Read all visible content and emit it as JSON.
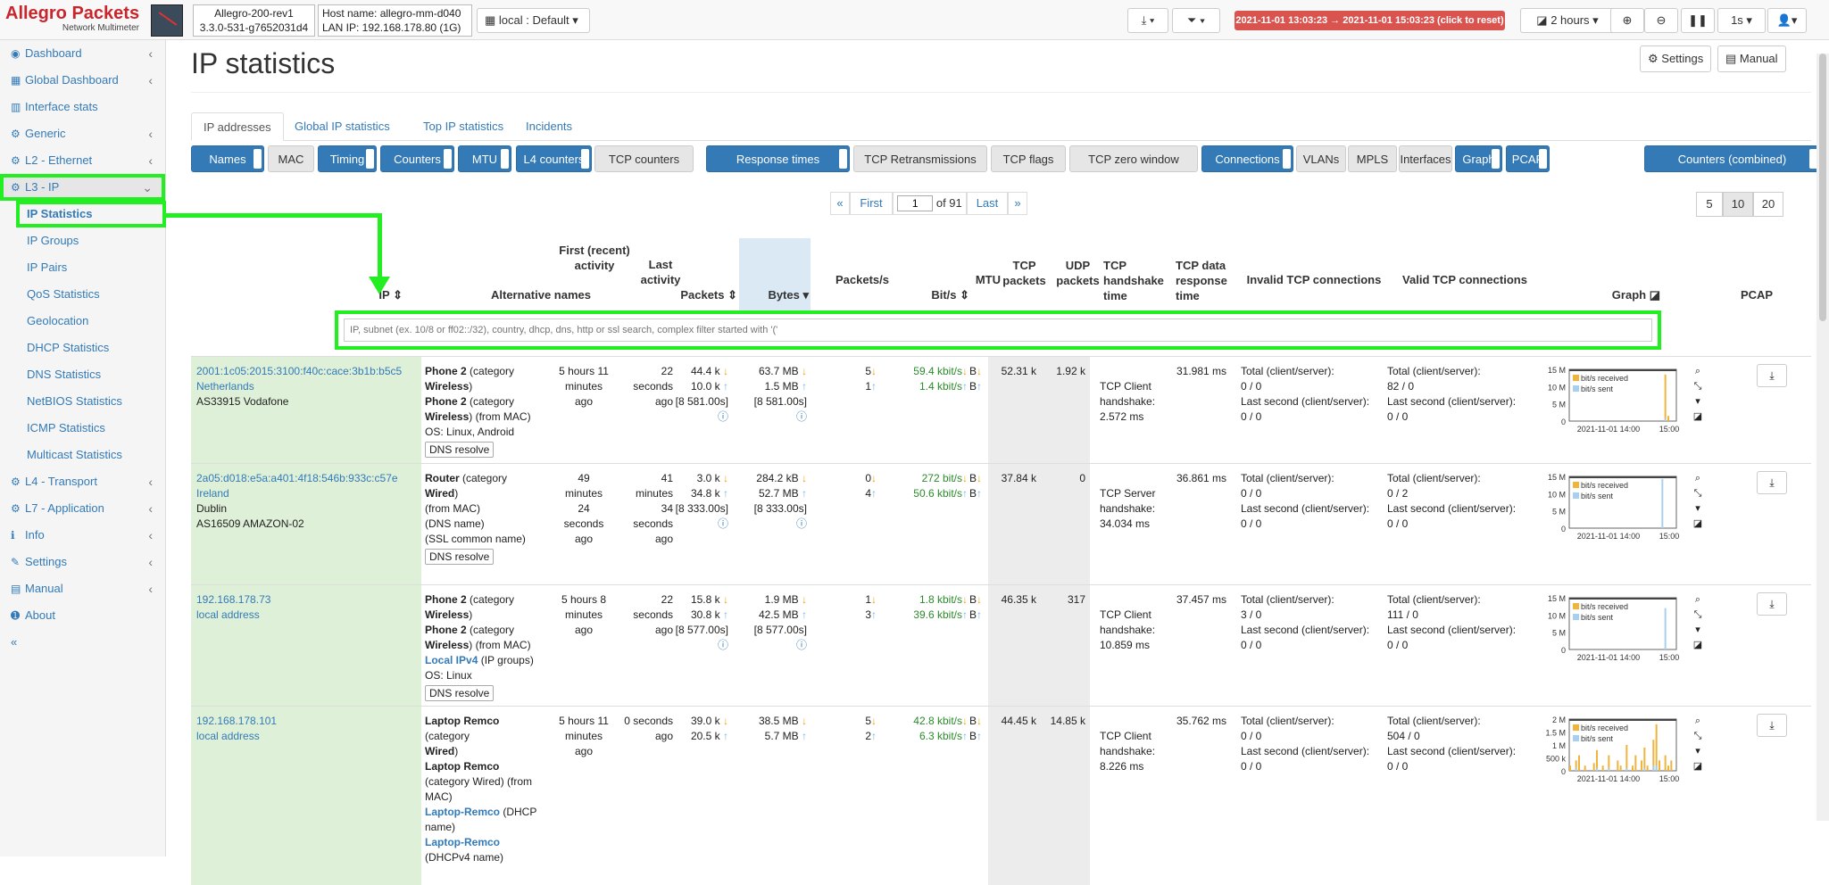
{
  "app": {
    "logo_line1": "Allegro Packets",
    "logo_line2": "Network Multimeter",
    "device_name": "Allegro-200-rev1",
    "version": "3.3.0-531-g7652031d4",
    "hostname": "Host name: allegro-mm-d040",
    "lan_ip": "LAN IP: 192.168.178.80 (1G)",
    "profile": "local : Default",
    "time_range": "2021-11-01 13:03:23 → 2021-11-01 15:03:23  (click to reset)",
    "interval": "2 hours",
    "refresh": "1s",
    "colors": {
      "accent": "#337ab7",
      "highlight": "#22ee22",
      "danger": "#d9534f"
    }
  },
  "sidebar": {
    "items": [
      {
        "label": "Dashboard",
        "icon": "dashboard-icon",
        "chev": "‹"
      },
      {
        "label": "Global Dashboard",
        "icon": "global-dashboard-icon",
        "chev": "‹"
      },
      {
        "label": "Interface stats",
        "icon": "chart-icon",
        "chev": ""
      },
      {
        "label": "Generic",
        "icon": "gear-icon",
        "chev": "‹"
      },
      {
        "label": "L2 - Ethernet",
        "icon": "gear-icon",
        "chev": "‹"
      },
      {
        "label": "L3 - IP",
        "icon": "gear-icon",
        "chev": "⌄"
      }
    ],
    "sub": [
      "IP Statistics",
      "IP Groups",
      "IP Pairs",
      "QoS Statistics",
      "Geolocation",
      "DHCP Statistics",
      "DNS Statistics",
      "NetBIOS Statistics",
      "ICMP Statistics",
      "Multicast Statistics"
    ],
    "bottom": [
      {
        "label": "L4 - Transport",
        "icon": "gear-icon",
        "chev": "‹"
      },
      {
        "label": "L7 - Application",
        "icon": "gear-icon",
        "chev": "‹"
      },
      {
        "label": "Info",
        "icon": "info-icon",
        "chev": "‹"
      },
      {
        "label": "Settings",
        "icon": "wrench-icon",
        "chev": "‹"
      },
      {
        "label": "Manual",
        "icon": "book-icon",
        "chev": "‹"
      },
      {
        "label": "About",
        "icon": "info-circle-icon",
        "chev": ""
      }
    ],
    "collapse": "«"
  },
  "page": {
    "title": "IP statistics",
    "settings_btn": "Settings",
    "manual_btn": "Manual"
  },
  "tabs": [
    "IP addresses",
    "Global IP statistics",
    "Top IP statistics",
    "Incidents"
  ],
  "toggles": [
    {
      "label": "Names",
      "on": true
    },
    {
      "label": "MAC",
      "on": false
    },
    {
      "label": "Timing",
      "on": true
    },
    {
      "label": "Counters",
      "on": true
    },
    {
      "label": "MTU",
      "on": true
    },
    {
      "label": "L4 counters",
      "on": true
    },
    {
      "label": "TCP counters",
      "on": false
    },
    {
      "label": "Response times",
      "on": true
    },
    {
      "label": "TCP Retransmissions",
      "on": false
    },
    {
      "label": "TCP flags",
      "on": false
    },
    {
      "label": "TCP zero window",
      "on": false
    },
    {
      "label": "Connections",
      "on": true
    },
    {
      "label": "VLANs",
      "on": false
    },
    {
      "label": "MPLS",
      "on": false
    },
    {
      "label": "Interfaces",
      "on": false
    },
    {
      "label": "Graph",
      "on": true
    },
    {
      "label": "PCAP",
      "on": true
    },
    {
      "label": "Counters (combined)",
      "on": true
    }
  ],
  "pagination": {
    "prev": "«",
    "first": "First",
    "page": "1",
    "of": "of 91",
    "last": "Last",
    "next": "»",
    "sizes": [
      "5",
      "10",
      "20"
    ]
  },
  "columns": {
    "ip": "IP",
    "alt": "Alternative names",
    "first": "First (recent) activity",
    "last": "Last activity",
    "packets": "Packets",
    "bytes": "Bytes",
    "pps": "Packets/s",
    "bits": "Bit/s",
    "mtu": "MTU",
    "tcp": "TCP packets",
    "udp": "UDP packets",
    "hs": "TCP handshake time",
    "dr": "TCP data response time",
    "inv": "Invalid TCP connections",
    "val": "Valid TCP connections",
    "graph": "Graph",
    "pcap": "PCAP"
  },
  "filter": {
    "placeholder": "IP, subnet (ex. 10/8 or ff02::/32), country, dhcp, dns, http or ssl search, complex filter started with '('"
  },
  "graph_legend": {
    "recv": "bit/s received",
    "sent": "bit/s sent"
  },
  "rows": [
    {
      "ip": "2001:1c05:2015:3100:f40c:cace:3b1b:b5c5",
      "ip2": "Netherlands",
      "ip3": "",
      "ip4": "AS33915 Vodafone",
      "alt": [
        [
          "Phone 2",
          " (category"
        ],
        [
          "Wireless",
          ")"
        ],
        [
          "Phone 2",
          " (category"
        ],
        [
          "Wireless",
          ") (from MAC)"
        ],
        [
          "",
          "OS: Linux, Android"
        ]
      ],
      "dns": "DNS resolve",
      "first": "5 hours 11 minutes ago",
      "last": "22 seconds ago",
      "pk1": "44.4 k",
      "pk2": "10.0 k",
      "pk3": "[8 581.00s]",
      "by1": "63.7 MB",
      "by2": "1.5 MB",
      "by3": "[8 581.00s]",
      "pps1": "5",
      "pps2": "1",
      "bs1": "59.4 kbit/s",
      "bs2": "1.4 kbit/s",
      "mtu1": "B",
      "mtu2": "B",
      "tcp": "52.31 k",
      "udp": "1.92 k",
      "hs": "TCP Client handshake: 2.572 ms",
      "dr": "31.981 ms",
      "inv": [
        "Total (client/server):",
        "0 / 0",
        "Last second (client/server):",
        "0 / 0"
      ],
      "val": [
        "Total (client/server):",
        "82 / 0",
        "Last second (client/server):",
        "0 / 0"
      ],
      "g_y": [
        "15 M",
        "10 M",
        "5 M",
        "0"
      ],
      "g_x": [
        "2021-11-01 14:00",
        "15:00"
      ],
      "g_recv": [
        0,
        0,
        0,
        0,
        0,
        0,
        0,
        0,
        0,
        0,
        0,
        0,
        0,
        0,
        0,
        0,
        0,
        0,
        0,
        0,
        0,
        0,
        0,
        0,
        0,
        0,
        0,
        0,
        0,
        0,
        0,
        0,
        0.9,
        0.1,
        0,
        0
      ],
      "g_sent": [
        0,
        0,
        0,
        0,
        0,
        0,
        0,
        0,
        0,
        0,
        0,
        0,
        0,
        0,
        0,
        0,
        0,
        0,
        0,
        0,
        0,
        0,
        0,
        0,
        0,
        0,
        0,
        0,
        0,
        0,
        0,
        0,
        0.05,
        0,
        0,
        0
      ]
    },
    {
      "ip": "2a05:d018:e5a:a401:4f18:546b:933c:c57e",
      "ip2": "Ireland",
      "ip3": "Dublin",
      "ip4": "AS16509 AMAZON-02",
      "alt": [
        [
          "Router",
          " (category "
        ],
        [
          "Wired",
          ")"
        ],
        [
          "",
          "(from MAC)"
        ],
        [
          "",
          ""
        ],
        [
          "",
          "(DNS name)"
        ],
        [
          "",
          "(SSL common name)"
        ]
      ],
      "dns": "DNS resolve",
      "first": "49 minutes 24 seconds ago",
      "last": "41 minutes 34 seconds ago",
      "pk1": "3.0 k",
      "pk2": "34.8 k",
      "pk3": "[8 333.00s]",
      "by1": "284.2 kB",
      "by2": "52.7 MB",
      "by3": "[8 333.00s]",
      "pps1": "0",
      "pps2": "4",
      "bs1": "272 bit/s",
      "bs2": "50.6 kbit/s",
      "mtu1": "B",
      "mtu2": "B",
      "tcp": "37.84 k",
      "udp": "0",
      "hs": "TCP Server handshake: 34.034 ms",
      "dr": "36.861 ms",
      "inv": [
        "Total (client/server):",
        "0 / 0",
        "Last second (client/server):",
        "0 / 0"
      ],
      "val": [
        "Total (client/server):",
        "0 / 2",
        "Last second (client/server):",
        "0 / 0"
      ],
      "g_y": [
        "15 M",
        "10 M",
        "5 M",
        "0"
      ],
      "g_x": [
        "2021-11-01 14:00",
        "15:00"
      ],
      "g_recv": [
        0,
        0,
        0,
        0,
        0,
        0,
        0,
        0,
        0,
        0,
        0,
        0,
        0,
        0,
        0,
        0,
        0,
        0,
        0,
        0,
        0,
        0,
        0,
        0,
        0,
        0,
        0,
        0,
        0,
        0,
        0,
        0,
        0,
        0,
        0,
        0
      ],
      "g_sent": [
        0,
        0,
        0,
        0,
        0,
        0,
        0,
        0,
        0,
        0,
        0,
        0,
        0,
        0,
        0,
        0,
        0,
        0,
        0,
        0,
        0,
        0,
        0,
        0,
        0,
        0,
        0,
        0,
        0,
        0,
        0,
        0.95,
        0,
        0,
        0,
        0
      ]
    },
    {
      "ip": "192.168.178.73",
      "ip2": "local address",
      "ip3": "",
      "ip4": "",
      "alt": [
        [
          "Phone 2",
          " (category"
        ],
        [
          "Wireless",
          ")"
        ],
        [
          "Phone 2",
          " (category"
        ],
        [
          "Wireless",
          ") (from MAC)"
        ],
        [
          "Local IPv4",
          " (IP groups)"
        ],
        [
          "",
          "OS: Linux"
        ]
      ],
      "dns": "DNS resolve",
      "first": "5 hours 8 minutes ago",
      "last": "22 seconds ago",
      "pk1": "15.8 k",
      "pk2": "30.8 k",
      "pk3": "[8 577.00s]",
      "by1": "1.9 MB",
      "by2": "42.5 MB",
      "by3": "[8 577.00s]",
      "pps1": "1",
      "pps2": "3",
      "bs1": "1.8 kbit/s",
      "bs2": "39.6 kbit/s",
      "mtu1": "B",
      "mtu2": "B",
      "tcp": "46.35 k",
      "udp": "317",
      "hs": "TCP Client handshake: 10.859 ms",
      "dr": "37.457 ms",
      "inv": [
        "Total (client/server):",
        "3 / 0",
        "Last second (client/server):",
        "0 / 0"
      ],
      "val": [
        "Total (client/server):",
        "111 / 0",
        "Last second (client/server):",
        "0 / 0"
      ],
      "g_y": [
        "15 M",
        "10 M",
        "5 M",
        "0"
      ],
      "g_x": [
        "2021-11-01 14:00",
        "15:00"
      ],
      "g_recv": [
        0,
        0,
        0,
        0,
        0,
        0,
        0,
        0,
        0,
        0,
        0,
        0,
        0,
        0,
        0,
        0,
        0,
        0,
        0,
        0,
        0,
        0,
        0,
        0,
        0,
        0,
        0,
        0,
        0,
        0,
        0,
        0,
        0.02,
        0,
        0,
        0
      ],
      "g_sent": [
        0,
        0,
        0,
        0,
        0,
        0,
        0,
        0,
        0,
        0,
        0,
        0,
        0,
        0,
        0,
        0,
        0,
        0,
        0,
        0,
        0,
        0,
        0,
        0,
        0,
        0,
        0,
        0,
        0,
        0,
        0,
        0,
        0.8,
        0,
        0,
        0
      ]
    },
    {
      "ip": "192.168.178.101",
      "ip2": "local address",
      "ip3": "",
      "ip4": "",
      "alt": [
        [
          "Laptop Remco",
          ""
        ],
        [
          "",
          "(category "
        ],
        [
          "Wired",
          ")"
        ],
        [
          "Laptop Remco",
          ""
        ],
        [
          "",
          "(category Wired) (from MAC)"
        ],
        [
          "Laptop-Remco",
          " (DHCP name)"
        ],
        [
          "Laptop-Remco",
          ""
        ],
        [
          "",
          "(DHCPv4 name)"
        ]
      ],
      "dns": "",
      "first": "5 hours 11 minutes ago",
      "last": "0 seconds ago",
      "pk1": "39.0 k",
      "pk2": "20.5 k",
      "pk3": "",
      "by1": "38.5 MB",
      "by2": "5.7 MB",
      "by3": "",
      "pps1": "5",
      "pps2": "2",
      "bs1": "42.8 kbit/s",
      "bs2": "6.3 kbit/s",
      "mtu1": "B",
      "mtu2": "B",
      "tcp": "44.45 k",
      "udp": "14.85 k",
      "hs": "TCP Client handshake: 8.226 ms",
      "dr": "35.762 ms",
      "inv": [
        "Total (client/server):",
        "0 / 0",
        "Last second (client/server):",
        "0 / 0"
      ],
      "val": [
        "Total (client/server):",
        "504 / 0",
        "Last second (client/server):",
        "0 / 0"
      ],
      "g_y": [
        "2 M",
        "1.5 M",
        "1 M",
        "500 k",
        "0"
      ],
      "g_x": [
        "2021-11-01 14:00",
        "15:00"
      ],
      "g_recv": [
        0.1,
        0,
        0.2,
        0.3,
        0,
        0.1,
        0,
        0,
        0.15,
        0.4,
        0,
        0.1,
        0,
        0.3,
        0,
        0,
        0.2,
        0.1,
        0,
        0.5,
        0,
        0.1,
        0.3,
        0,
        0.2,
        0.45,
        0.1,
        0,
        0.6,
        0.9,
        0.2,
        0,
        0.3,
        0.1,
        0.2,
        0
      ],
      "g_sent": [
        0,
        0,
        0.05,
        0,
        0,
        0,
        0,
        0,
        0,
        0.05,
        0,
        0,
        0,
        0.05,
        0,
        0,
        0,
        0,
        0,
        0.05,
        0,
        0,
        0,
        0,
        0,
        0.05,
        0,
        0,
        0.1,
        0.1,
        0,
        0,
        0,
        0,
        0,
        0
      ]
    }
  ]
}
